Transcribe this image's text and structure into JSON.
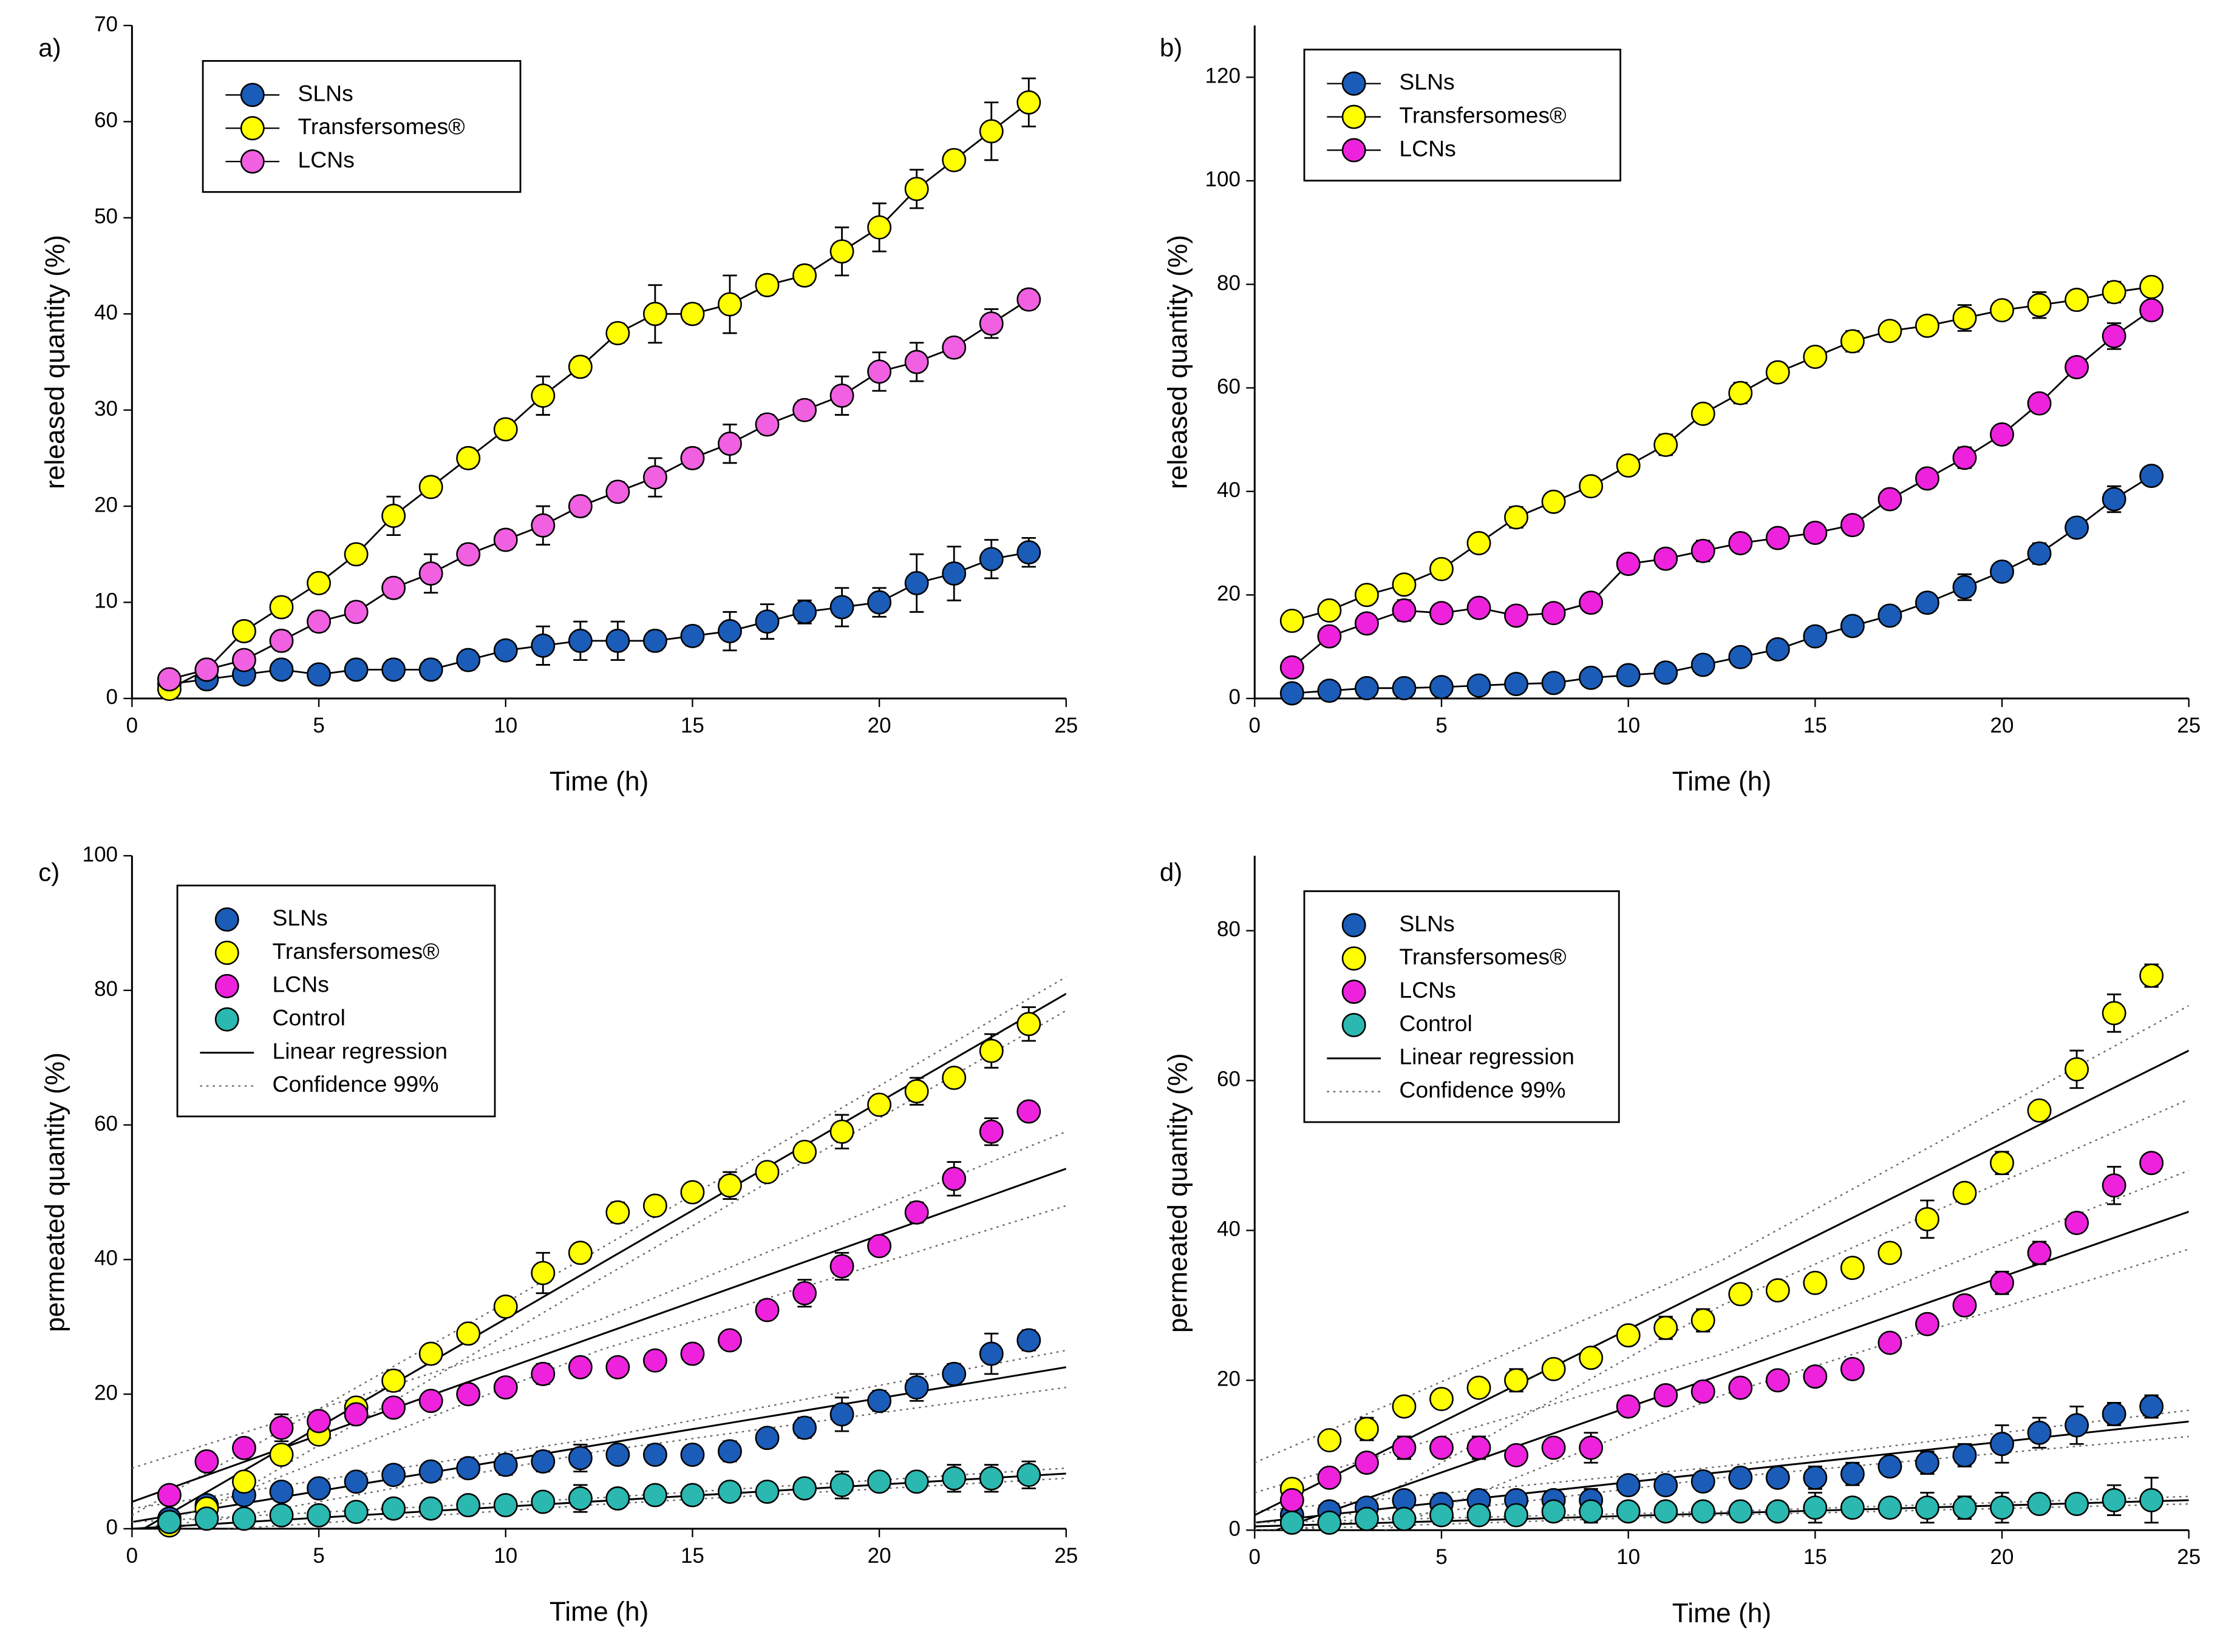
{
  "chart_data": [
    {
      "type": "line",
      "panel_label": "a)",
      "x_label": "Time (h)",
      "y_label": "released quantity (%)",
      "xlim": [
        0,
        25
      ],
      "xticks": [
        0,
        5,
        10,
        15,
        20,
        25
      ],
      "ylim": [
        0,
        70
      ],
      "yticks": [
        0,
        10,
        20,
        30,
        40,
        50,
        60,
        70
      ],
      "x": [
        1,
        2,
        3,
        4,
        5,
        6,
        7,
        8,
        9,
        10,
        11,
        12,
        13,
        14,
        15,
        16,
        17,
        18,
        19,
        20,
        21,
        22,
        23,
        24
      ],
      "series": [
        {
          "name": "SLNs",
          "color": "#1a5cb8",
          "values": [
            1.5,
            2,
            2.5,
            3,
            2.5,
            3,
            3,
            3,
            4,
            5,
            5.5,
            6,
            6,
            6,
            6.5,
            7,
            8,
            9,
            9.5,
            10,
            12,
            13,
            14.5,
            15.2
          ],
          "errors": [
            0.5,
            0.8,
            0.8,
            0.8,
            0.8,
            0.8,
            1,
            1,
            1,
            0.8,
            2,
            2,
            2,
            1,
            1,
            2,
            1.8,
            1.2,
            2,
            1.5,
            3,
            2.8,
            2,
            1.5
          ]
        },
        {
          "name": "Transfersomes®",
          "color": "#ffff00",
          "values": [
            1,
            3,
            7,
            9.5,
            12,
            15,
            19,
            22,
            25,
            28,
            31.5,
            34.5,
            38,
            40,
            40,
            41,
            43,
            44,
            46.5,
            49,
            53,
            56,
            59,
            62
          ],
          "errors": [
            0.5,
            0.5,
            1,
            1,
            1,
            1,
            2,
            1,
            1,
            1,
            2,
            1,
            1,
            3,
            1,
            3,
            1,
            1,
            2.5,
            2.5,
            2,
            1,
            3,
            2.5
          ]
        },
        {
          "name": "LCNs",
          "color": "#f060e0",
          "values": [
            2,
            3,
            4,
            6,
            8,
            9,
            11.5,
            13,
            15,
            16.5,
            18,
            20,
            21.5,
            23,
            25,
            26.5,
            28.5,
            30,
            31.5,
            34,
            35,
            36.5,
            39,
            41.5
          ],
          "errors": [
            0.5,
            0.5,
            0.5,
            1,
            1,
            1,
            1,
            2,
            1,
            1,
            2,
            1,
            1,
            2,
            1,
            2,
            1,
            1,
            2,
            2,
            2,
            1,
            1.5,
            1
          ]
        }
      ]
    },
    {
      "type": "line",
      "panel_label": "b)",
      "x_label": "Time (h)",
      "y_label": "released quantity (%)",
      "xlim": [
        0,
        25
      ],
      "xticks": [
        0,
        5,
        10,
        15,
        20,
        25
      ],
      "ylim": [
        0,
        130
      ],
      "yticks": [
        0,
        20,
        40,
        60,
        80,
        100,
        120
      ],
      "x": [
        1,
        2,
        3,
        4,
        5,
        6,
        7,
        8,
        9,
        10,
        11,
        12,
        13,
        14,
        15,
        16,
        17,
        18,
        19,
        20,
        21,
        22,
        23,
        24
      ],
      "series": [
        {
          "name": "SLNs",
          "color": "#1a5cb8",
          "values": [
            1,
            1.5,
            2,
            2,
            2.2,
            2.5,
            2.8,
            3,
            4,
            4.5,
            5,
            6.5,
            8,
            9.5,
            12,
            14,
            16,
            18.5,
            21.5,
            24.5,
            28,
            33,
            38.5,
            43
          ],
          "errors": [
            0.5,
            0.5,
            0.5,
            0.5,
            0.5,
            0.5,
            0.5,
            0.5,
            1,
            1,
            1,
            1,
            1,
            1,
            1,
            1,
            1,
            1,
            2.5,
            1.5,
            2,
            1.5,
            2.5,
            1.5
          ]
        },
        {
          "name": "Transfersomes®",
          "color": "#ffff00",
          "values": [
            15,
            17,
            20,
            22,
            25,
            30,
            35,
            38,
            41,
            45,
            49,
            55,
            59,
            63,
            66,
            69,
            71,
            72,
            73.5,
            75,
            76,
            77,
            78.5,
            79.5
          ],
          "errors": [
            1,
            1,
            1,
            1,
            1,
            1,
            2,
            1,
            1,
            1,
            2,
            1,
            2,
            1,
            1,
            2,
            1,
            1,
            2.5,
            1,
            2.5,
            1,
            2,
            1.5
          ]
        },
        {
          "name": "LCNs",
          "color": "#ee22dd",
          "values": [
            6,
            12,
            14.5,
            17,
            16.5,
            17.5,
            16,
            16.5,
            18.5,
            26,
            27,
            28.5,
            30,
            31,
            32,
            33.5,
            38.5,
            42.5,
            46.5,
            51,
            57,
            64,
            70,
            75
          ],
          "errors": [
            1,
            1,
            1,
            2,
            1,
            1,
            1,
            1,
            1,
            1,
            1,
            2,
            1,
            1,
            1,
            1,
            1,
            1,
            2,
            1,
            1,
            1,
            2.5,
            1
          ]
        }
      ]
    },
    {
      "type": "scatter",
      "panel_label": "c)",
      "x_label": "Time (h)",
      "y_label": "permeated quantity (%)",
      "xlim": [
        0,
        25
      ],
      "xticks": [
        0,
        5,
        10,
        15,
        20,
        25
      ],
      "ylim": [
        0,
        100
      ],
      "yticks": [
        0,
        20,
        40,
        60,
        80,
        100
      ],
      "regression_label": "Linear regression",
      "confidence_label": "Confidence 99%",
      "x": [
        1,
        2,
        3,
        4,
        5,
        6,
        7,
        8,
        9,
        10,
        11,
        12,
        13,
        14,
        15,
        16,
        17,
        18,
        19,
        20,
        21,
        22,
        23,
        24
      ],
      "series": [
        {
          "name": "SLNs",
          "color": "#1a5cb8",
          "values": [
            1.5,
            3.5,
            5,
            5.5,
            6,
            7,
            8,
            8.5,
            9,
            9.5,
            10,
            10.5,
            11,
            11,
            11,
            11.5,
            13.5,
            15,
            17,
            19,
            21,
            23,
            26,
            28
          ],
          "errors": [
            1,
            1,
            1,
            1,
            1,
            1,
            1,
            1,
            1,
            1.5,
            1.5,
            2,
            1,
            1,
            1,
            1.5,
            1,
            1.5,
            2.5,
            1.5,
            2,
            1.5,
            3,
            1.5
          ],
          "fit": {
            "x": [
              0,
              12.5,
              25
            ],
            "values": [
              1,
              12.5,
              24
            ],
            "upper": [
              3,
              13.5,
              26.5
            ],
            "lower": [
              -1,
              11.5,
              21
            ]
          }
        },
        {
          "name": "Transfersomes®",
          "color": "#ffff00",
          "values": [
            0.5,
            3,
            7,
            11,
            14,
            18,
            22,
            26,
            29,
            33,
            38,
            41,
            47,
            48,
            50,
            51,
            53,
            56,
            59,
            63,
            65,
            67,
            71,
            75
          ],
          "errors": [
            0.5,
            1,
            1,
            1,
            1,
            1,
            1.5,
            1,
            1,
            1,
            3,
            1,
            1.5,
            1,
            1,
            2,
            1,
            1,
            2.5,
            1,
            2,
            1,
            2.5,
            2.5
          ],
          "fit": {
            "x": [
              0,
              12.5,
              25
            ],
            "values": [
              -1,
              39.25,
              79.5
            ],
            "upper": [
              2,
              41.5,
              82
            ],
            "lower": [
              -4,
              37,
              77
            ]
          }
        },
        {
          "name": "LCNs",
          "color": "#ee22dd",
          "values": [
            5,
            10,
            12,
            15,
            16,
            17,
            18,
            19,
            20,
            21,
            23,
            24,
            24,
            25,
            26,
            28,
            32.5,
            35,
            39,
            42,
            47,
            52,
            59,
            62
          ],
          "errors": [
            1,
            1,
            1,
            2,
            1,
            1,
            1,
            1,
            1,
            1,
            1.5,
            1,
            1,
            1,
            1,
            1,
            1,
            2,
            2,
            1,
            1.5,
            2.5,
            2,
            1
          ],
          "fit": {
            "x": [
              0,
              12.5,
              25
            ],
            "values": [
              4,
              28.75,
              53.5
            ],
            "upper": [
              9,
              31,
              59
            ],
            "lower": [
              -1,
              26.5,
              48
            ]
          }
        },
        {
          "name": "Control",
          "color": "#2ab8b0",
          "values": [
            1,
            1.5,
            1.5,
            2,
            2,
            2.5,
            3,
            3,
            3.5,
            3.5,
            4,
            4.5,
            4.5,
            5,
            5,
            5.5,
            5.5,
            6,
            6.5,
            7,
            7,
            7.5,
            7.5,
            8
          ],
          "errors": [
            1,
            1,
            1,
            1,
            1,
            1,
            1,
            1,
            1,
            1,
            1,
            2,
            1,
            1,
            1,
            1,
            1,
            1,
            2,
            1,
            1,
            2,
            2,
            2
          ],
          "fit": {
            "x": [
              0,
              12.5,
              25
            ],
            "values": [
              0,
              4.1,
              8.2
            ],
            "upper": [
              1,
              4.6,
              9
            ],
            "lower": [
              -1,
              3.6,
              7.5
            ]
          }
        }
      ]
    },
    {
      "type": "scatter",
      "panel_label": "d)",
      "x_label": "Time (h)",
      "y_label": "permeated quantity (%)",
      "xlim": [
        0,
        25
      ],
      "xticks": [
        0,
        5,
        10,
        15,
        20,
        25
      ],
      "ylim": [
        0,
        90
      ],
      "yticks": [
        0,
        20,
        40,
        60,
        80
      ],
      "regression_label": "Linear regression",
      "confidence_label": "Confidence 99%",
      "x": [
        1,
        2,
        3,
        4,
        5,
        6,
        7,
        8,
        9,
        10,
        11,
        12,
        13,
        14,
        15,
        16,
        17,
        18,
        19,
        20,
        21,
        22,
        23,
        24
      ],
      "series": [
        {
          "name": "SLNs",
          "color": "#1a5cb8",
          "values": [
            2,
            2.5,
            3,
            4,
            3.5,
            4,
            4,
            4,
            4,
            6,
            6,
            6.5,
            7,
            7,
            7,
            7.5,
            8.5,
            9,
            10,
            11.5,
            13,
            14,
            15.5,
            16.5
          ],
          "errors": [
            1,
            1,
            1,
            1,
            1,
            1,
            1,
            1,
            1.5,
            1,
            1,
            1,
            1,
            1,
            1.5,
            1.5,
            1,
            1.5,
            1.5,
            2.5,
            2,
            2.5,
            1.5,
            1.5
          ],
          "fit": {
            "x": [
              0,
              12.5,
              25
            ],
            "values": [
              1,
              7.75,
              14.5
            ],
            "upper": [
              2.5,
              8.5,
              16
            ],
            "lower": [
              -0.5,
              7,
              12.5
            ]
          }
        },
        {
          "name": "Transfersomes®",
          "color": "#ffff00",
          "values": [
            5.5,
            12,
            13.5,
            16.5,
            17.5,
            19,
            20,
            21.5,
            23,
            26,
            27,
            28,
            31.5,
            32,
            33,
            35,
            37,
            41.5,
            45,
            49,
            56,
            61.5,
            69,
            74
          ],
          "errors": [
            1,
            1,
            1.5,
            1,
            1,
            1,
            1.5,
            1,
            1,
            1,
            1.5,
            1.5,
            1,
            1,
            1,
            1,
            1,
            2.5,
            1,
            1.5,
            1,
            2.5,
            2.5,
            1.5
          ],
          "fit": {
            "x": [
              0,
              12.5,
              25
            ],
            "values": [
              2,
              33,
              64
            ],
            "upper": [
              9,
              36,
              70
            ],
            "lower": [
              -5,
              30,
              57.5
            ]
          }
        },
        {
          "name": "LCNs",
          "color": "#ee22dd",
          "values": [
            4,
            7,
            9,
            11,
            11,
            11,
            10,
            11,
            11,
            16.5,
            18,
            18.5,
            19,
            20,
            20.5,
            21.5,
            25,
            27.5,
            30,
            33,
            37,
            41,
            46,
            49
          ],
          "errors": [
            1,
            1,
            1,
            1.5,
            1,
            1.5,
            1,
            1,
            2,
            1,
            1,
            1,
            1,
            1,
            1,
            1,
            1,
            1,
            1,
            1.5,
            1.5,
            1,
            2.5,
            1
          ],
          "fit": {
            "x": [
              0,
              12.5,
              25
            ],
            "values": [
              -1,
              20.75,
              42.5
            ],
            "upper": [
              5,
              23.5,
              48
            ],
            "lower": [
              -7,
              18,
              37.5
            ]
          }
        },
        {
          "name": "Control",
          "color": "#2ab8b0",
          "values": [
            1,
            1,
            1.5,
            1.5,
            2,
            2,
            2,
            2.5,
            2.5,
            2.5,
            2.5,
            2.5,
            2.5,
            2.5,
            3,
            3,
            3,
            3,
            3,
            3,
            3.5,
            3.5,
            4,
            4
          ],
          "errors": [
            1,
            1,
            1,
            1,
            1,
            1,
            1,
            1,
            1.5,
            1,
            1,
            1,
            1,
            1,
            2,
            1,
            1,
            2,
            1.5,
            2,
            1,
            1,
            2,
            3
          ],
          "fit": {
            "x": [
              0,
              12.5,
              25
            ],
            "values": [
              0.5,
              2.25,
              4
            ],
            "upper": [
              1,
              2.5,
              4.5
            ],
            "lower": [
              0,
              2,
              3.5
            ]
          }
        }
      ]
    }
  ]
}
